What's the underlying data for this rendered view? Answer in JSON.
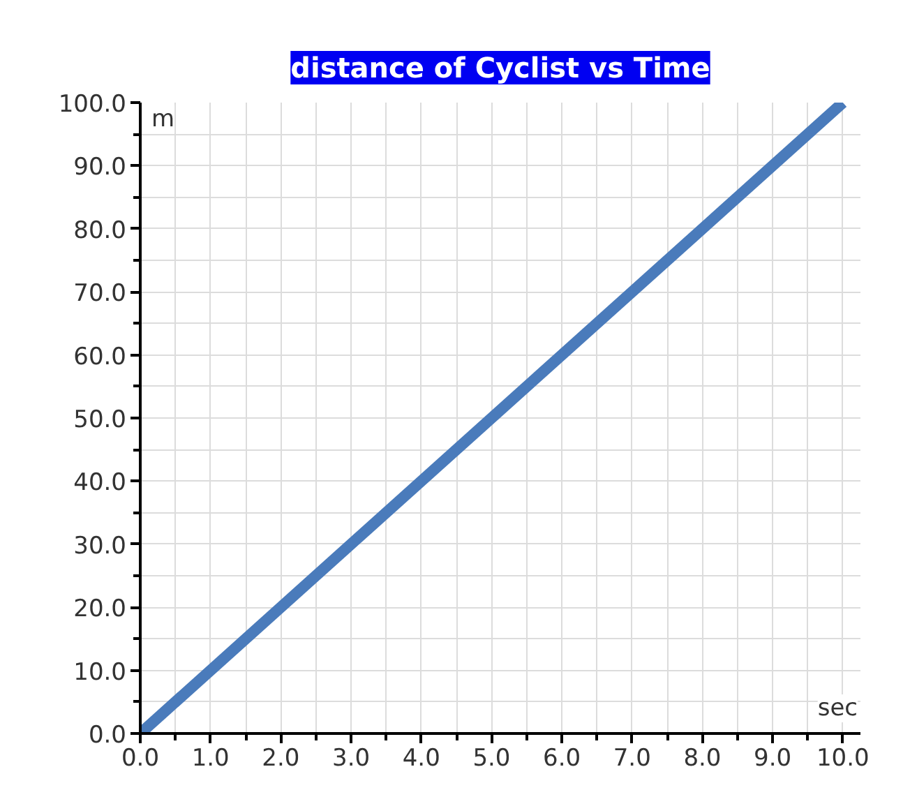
{
  "chart_data": {
    "type": "line",
    "title": "distance of Cyclist vs Time",
    "xlabel": "sec",
    "ylabel": "m",
    "x": [
      0,
      10
    ],
    "series": [
      {
        "color": "#4a7bbb",
        "values": [
          0,
          100
        ]
      }
    ],
    "xlim": [
      0,
      10.25
    ],
    "ylim": [
      0,
      100
    ],
    "xticks": [
      {
        "value": 0,
        "label": "0.0"
      },
      {
        "value": 0.5,
        "label": null
      },
      {
        "value": 1,
        "label": "1.0"
      },
      {
        "value": 1.5,
        "label": null
      },
      {
        "value": 2,
        "label": "2.0"
      },
      {
        "value": 2.5,
        "label": null
      },
      {
        "value": 3,
        "label": "3.0"
      },
      {
        "value": 3.5,
        "label": null
      },
      {
        "value": 4,
        "label": "4.0"
      },
      {
        "value": 4.5,
        "label": null
      },
      {
        "value": 5,
        "label": "5.0"
      },
      {
        "value": 5.5,
        "label": null
      },
      {
        "value": 6,
        "label": "6.0"
      },
      {
        "value": 6.5,
        "label": null
      },
      {
        "value": 7,
        "label": "7.0"
      },
      {
        "value": 7.5,
        "label": null
      },
      {
        "value": 8,
        "label": "8.0"
      },
      {
        "value": 8.5,
        "label": null
      },
      {
        "value": 9,
        "label": "9.0"
      },
      {
        "value": 9.5,
        "label": null
      },
      {
        "value": 10,
        "label": "10.0"
      }
    ],
    "yticks": [
      {
        "value": 0,
        "label": "0.0"
      },
      {
        "value": 5,
        "label": null
      },
      {
        "value": 10,
        "label": "10.0"
      },
      {
        "value": 15,
        "label": null
      },
      {
        "value": 20,
        "label": "20.0"
      },
      {
        "value": 25,
        "label": null
      },
      {
        "value": 30,
        "label": "30.0"
      },
      {
        "value": 35,
        "label": null
      },
      {
        "value": 40,
        "label": "40.0"
      },
      {
        "value": 45,
        "label": null
      },
      {
        "value": 50,
        "label": "50.0"
      },
      {
        "value": 55,
        "label": null
      },
      {
        "value": 60,
        "label": "60.0"
      },
      {
        "value": 65,
        "label": null
      },
      {
        "value": 70,
        "label": "70.0"
      },
      {
        "value": 75,
        "label": null
      },
      {
        "value": 80,
        "label": "80.0"
      },
      {
        "value": 85,
        "label": null
      },
      {
        "value": 90,
        "label": "90.0"
      },
      {
        "value": 95,
        "label": null
      },
      {
        "value": 100,
        "label": "100.0"
      }
    ],
    "grid": true,
    "marker": "none",
    "line_style": "solid"
  }
}
